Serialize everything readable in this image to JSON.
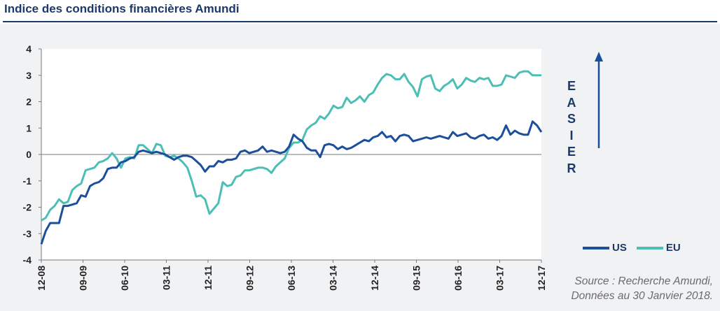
{
  "title": "Indice des conditions financières Amundi",
  "source": [
    "Source : Recherche Amundi,",
    "Données au 30 Janvier 2018."
  ],
  "annotation": [
    "E",
    "A",
    "S",
    "I",
    "E",
    "R"
  ],
  "colors": {
    "us": "#1b4f9c",
    "eu": "#4bbfb6",
    "arrow": "#1b4f9c"
  },
  "chart_data": {
    "type": "line",
    "ylim": [
      -4,
      4
    ],
    "yticks": [
      4,
      3,
      2,
      1,
      0,
      -1,
      -2,
      -3,
      -4
    ],
    "xticks": [
      "12-08",
      "09-09",
      "06-10",
      "03-11",
      "12-11",
      "09-12",
      "06-13",
      "03-14",
      "12-14",
      "09-15",
      "06-16",
      "03-17",
      "12-17"
    ],
    "legend_position": "bottom-right",
    "series": [
      {
        "name": "US",
        "values": [
          -3.4,
          -2.9,
          -2.6,
          -2.6,
          -2.6,
          -1.95,
          -1.95,
          -1.9,
          -1.85,
          -1.55,
          -1.6,
          -1.2,
          -1.1,
          -1.05,
          -0.9,
          -0.55,
          -0.5,
          -0.5,
          -0.3,
          -0.25,
          -0.15,
          -0.1,
          0.1,
          0.15,
          0.1,
          0.05,
          0.1,
          0.05,
          0.0,
          -0.1,
          -0.2,
          -0.1,
          -0.05,
          -0.05,
          -0.1,
          -0.25,
          -0.4,
          -0.65,
          -0.45,
          -0.45,
          -0.25,
          -0.3,
          -0.2,
          -0.2,
          -0.15,
          0.1,
          0.15,
          0.05,
          0.1,
          0.15,
          0.3,
          0.1,
          0.15,
          0.1,
          0.05,
          0.1,
          0.3,
          0.75,
          0.6,
          0.5,
          0.25,
          0.15,
          0.15,
          -0.1,
          0.35,
          0.4,
          0.35,
          0.2,
          0.3,
          0.2,
          0.25,
          0.35,
          0.45,
          0.55,
          0.5,
          0.65,
          0.7,
          0.85,
          0.65,
          0.7,
          0.5,
          0.7,
          0.75,
          0.7,
          0.5,
          0.55,
          0.6,
          0.65,
          0.6,
          0.65,
          0.7,
          0.65,
          0.6,
          0.85,
          0.7,
          0.75,
          0.8,
          0.65,
          0.6,
          0.7,
          0.75,
          0.6,
          0.65,
          0.55,
          0.7,
          1.1,
          0.75,
          0.9,
          0.8,
          0.75,
          0.75,
          1.25,
          1.1,
          0.85
        ]
      },
      {
        "name": "EU",
        "values": [
          -2.5,
          -2.4,
          -2.1,
          -1.95,
          -1.7,
          -1.85,
          -1.8,
          -1.35,
          -1.2,
          -1.1,
          -0.6,
          -0.55,
          -0.5,
          -0.3,
          -0.25,
          -0.15,
          0.05,
          -0.15,
          -0.5,
          -0.15,
          -0.1,
          -0.15,
          0.35,
          0.35,
          0.2,
          0.05,
          0.4,
          0.35,
          -0.05,
          -0.1,
          -0.05,
          -0.15,
          -0.3,
          -0.5,
          -1.0,
          -1.6,
          -1.55,
          -1.7,
          -2.25,
          -2.05,
          -1.85,
          -1.05,
          -1.2,
          -1.15,
          -0.85,
          -0.8,
          -0.6,
          -0.6,
          -0.55,
          -0.5,
          -0.5,
          -0.55,
          -0.7,
          -0.45,
          -0.3,
          -0.15,
          0.25,
          0.45,
          0.45,
          0.55,
          0.95,
          1.1,
          1.2,
          1.45,
          1.35,
          1.55,
          1.85,
          1.75,
          1.8,
          2.15,
          1.95,
          2.05,
          2.2,
          2.0,
          2.25,
          2.35,
          2.65,
          2.9,
          3.05,
          3.0,
          2.85,
          2.85,
          3.05,
          2.75,
          2.55,
          2.2,
          2.85,
          2.95,
          3.0,
          2.5,
          2.4,
          2.6,
          2.7,
          2.85,
          2.5,
          2.65,
          2.9,
          2.8,
          2.75,
          2.9,
          2.85,
          2.9,
          2.6,
          2.6,
          2.65,
          3.0,
          2.95,
          2.9,
          3.1,
          3.15,
          3.15,
          3.0,
          3.0,
          3.0
        ]
      }
    ]
  }
}
